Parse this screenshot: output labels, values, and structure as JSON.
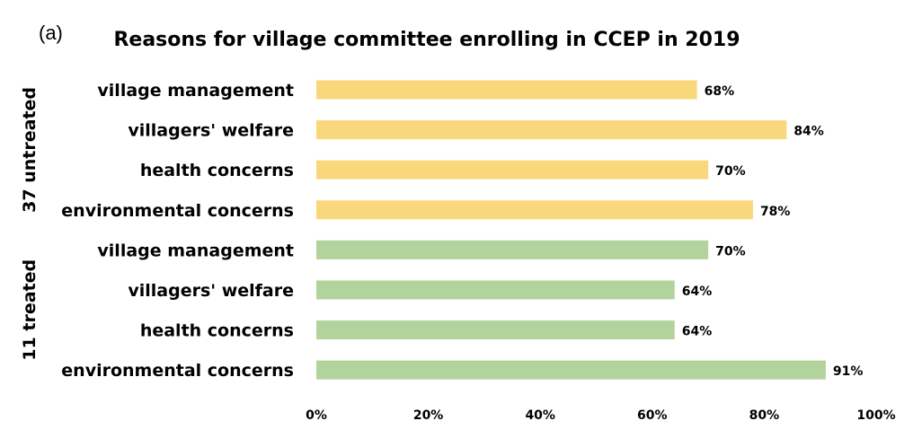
{
  "panel_label": "(a)",
  "chart_data": {
    "type": "bar",
    "orientation": "horizontal",
    "title": "Reasons for village committee enrolling in CCEP in 2019",
    "xlim": [
      0,
      100
    ],
    "x_ticks": [
      "0%",
      "20%",
      "40%",
      "60%",
      "80%",
      "100%"
    ],
    "grid": false,
    "groups": [
      {
        "name": "37 untreated",
        "color": "#F9D87C",
        "categories": [
          "village management",
          "villagers' welfare",
          "health concerns",
          "environmental  concerns"
        ],
        "values": [
          68,
          84,
          70,
          78
        ],
        "labels": [
          "68%",
          "84%",
          "70%",
          "78%"
        ]
      },
      {
        "name": "11 treated",
        "color": "#B3D39C",
        "categories": [
          "village management",
          "villagers' welfare",
          "health concerns",
          "environmental  concerns"
        ],
        "values": [
          70,
          64,
          64,
          91
        ],
        "labels": [
          "70%",
          "64%",
          "64%",
          "91%"
        ]
      }
    ]
  }
}
